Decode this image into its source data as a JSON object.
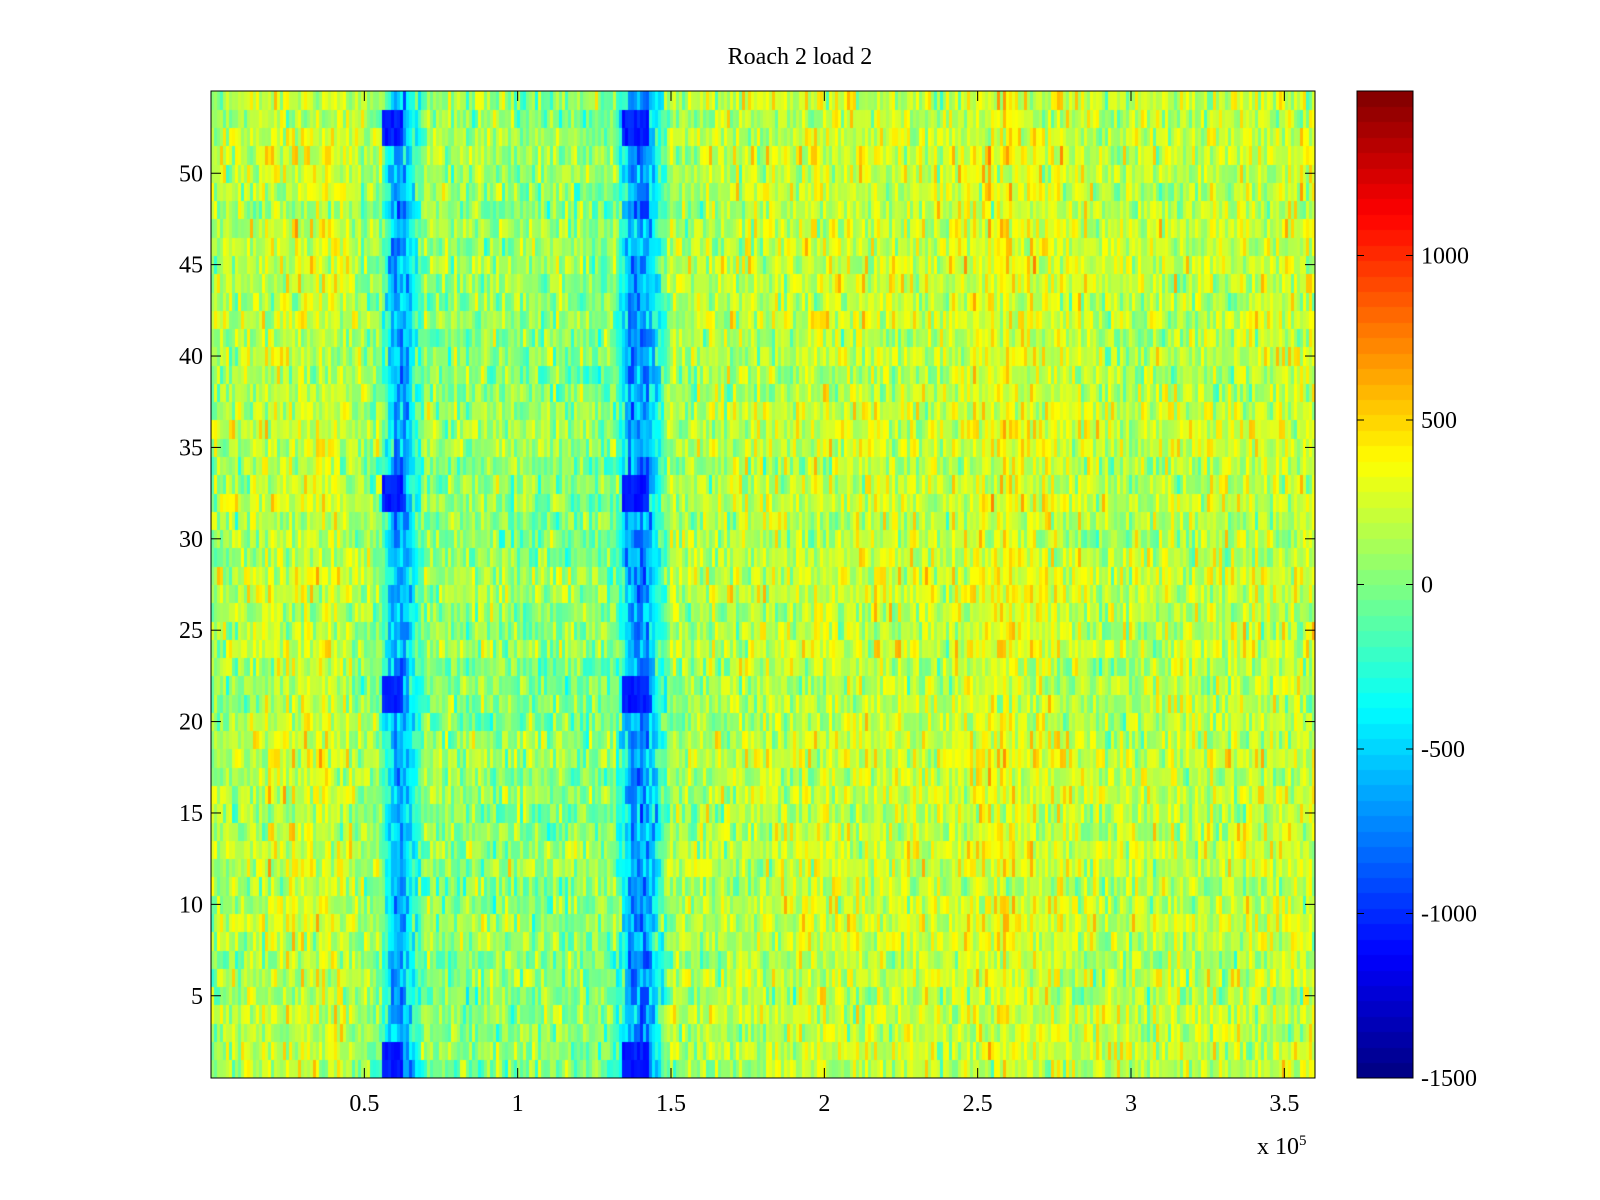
{
  "chart_data": {
    "type": "heatmap",
    "title": "Roach 2 load 2",
    "xlabel": "",
    "ylabel": "",
    "x_exponent_label": {
      "base": "x 10",
      "power": "5"
    },
    "xlim": [
      0,
      360000
    ],
    "ylim": [
      0.5,
      54.5
    ],
    "rows": 54,
    "grid": false,
    "colormap": "jet",
    "colorbar": {
      "placement": "right",
      "clim": [
        -1500,
        1500
      ],
      "ticks": [
        -1500,
        -1000,
        -500,
        0,
        500,
        1000
      ],
      "tick_labels": [
        "-1500",
        "-1000",
        "-500",
        "0",
        "500",
        "1000"
      ]
    },
    "x_ticks": [
      50000,
      100000,
      150000,
      200000,
      250000,
      300000,
      350000
    ],
    "x_tick_labels": [
      "0.5",
      "1",
      "1.5",
      "2",
      "2.5",
      "3",
      "3.5"
    ],
    "y_ticks": [
      5,
      10,
      15,
      20,
      25,
      30,
      35,
      40,
      45,
      50
    ],
    "y_tick_labels": [
      "5",
      "10",
      "15",
      "20",
      "25",
      "30",
      "35",
      "40",
      "45",
      "50"
    ],
    "value_profile": {
      "description": "approximate mean value by x position (noisy texture around these means)",
      "x": [
        0,
        20000,
        40000,
        55000,
        60000,
        63000,
        70000,
        100000,
        132000,
        137000,
        142000,
        150000,
        200000,
        240000,
        260000,
        290000,
        330000,
        360000
      ],
      "mean": [
        100,
        200,
        250,
        20,
        -650,
        -650,
        50,
        60,
        0,
        -700,
        -700,
        120,
        220,
        200,
        320,
        160,
        190,
        220
      ],
      "noise_amplitude": 320
    },
    "dark_blue_patches": [
      {
        "x_range": [
          56000,
          63000
        ],
        "rows": [
          52,
          53
        ]
      },
      {
        "x_range": [
          134000,
          143000
        ],
        "rows": [
          52,
          53
        ]
      },
      {
        "x_range": [
          56000,
          63000
        ],
        "rows": [
          32,
          33
        ]
      },
      {
        "x_range": [
          134000,
          143000
        ],
        "rows": [
          32,
          33
        ]
      },
      {
        "x_range": [
          56000,
          63000
        ],
        "rows": [
          21,
          22
        ]
      },
      {
        "x_range": [
          134000,
          143000
        ],
        "rows": [
          21,
          22
        ]
      },
      {
        "x_range": [
          56000,
          63000
        ],
        "rows": [
          1,
          2
        ]
      },
      {
        "x_range": [
          134000,
          143000
        ],
        "rows": [
          1,
          2
        ]
      }
    ]
  }
}
